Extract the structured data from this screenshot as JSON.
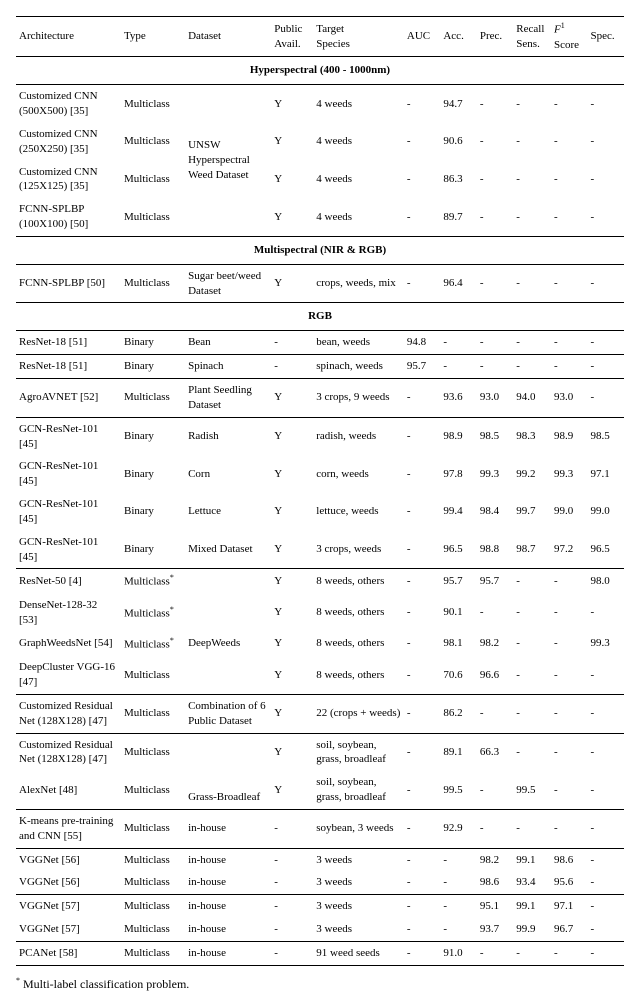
{
  "headers": {
    "arch": "Architecture",
    "type": "Type",
    "dataset": "Dataset",
    "avail1": "Public",
    "avail2": "Avail.",
    "target1": "Target",
    "target2": "Species",
    "auc": "AUC",
    "acc": "Acc.",
    "prec": "Prec.",
    "recall1": "Recall",
    "recall2": "Sens.",
    "f1a": "F",
    "f1sub": "1",
    "f1b": "Score",
    "spec": "Spec."
  },
  "sections": {
    "hyper": "Hyperspectral (400 - 1000nm)",
    "multi": "Multispectral (NIR & RGB)",
    "rgb": "RGB"
  },
  "rows": {
    "h1": {
      "arch": "Customized CNN (500X500) [35]",
      "type": "Multiclass",
      "ds": "",
      "avail": "Y",
      "target": "4 weeds",
      "auc": "-",
      "acc": "94.7",
      "prec": "-",
      "recall": "-",
      "f1": "-",
      "spec": "-"
    },
    "h2": {
      "arch": "Customized CNN (250X250) [35]",
      "type": "Multiclass",
      "ds": "UNSW",
      "avail": "Y",
      "target": "4 weeds",
      "auc": "-",
      "acc": "90.6",
      "prec": "-",
      "recall": "-",
      "f1": "-",
      "spec": "-"
    },
    "h3": {
      "arch": "Customized CNN (125X125) [35]",
      "type": "Multiclass",
      "ds": "Hyperspectral Weed Dataset",
      "avail": "Y",
      "target": "4 weeds",
      "auc": "-",
      "acc": "86.3",
      "prec": "-",
      "recall": "-",
      "f1": "-",
      "spec": "-"
    },
    "h4": {
      "arch": "FCNN-SPLBP (100X100) [50]",
      "type": "Multiclass",
      "ds": "",
      "avail": "Y",
      "target": "4 weeds",
      "auc": "-",
      "acc": "89.7",
      "prec": "-",
      "recall": "-",
      "f1": "-",
      "spec": "-"
    },
    "m1": {
      "arch": "FCNN-SPLBP [50]",
      "type": "Multiclass",
      "ds": "Sugar beet/weed Dataset",
      "avail": "Y",
      "target": "crops, weeds, mix",
      "auc": "-",
      "acc": "96.4",
      "prec": "-",
      "recall": "-",
      "f1": "-",
      "spec": "-"
    },
    "r1": {
      "arch": "ResNet-18 [51]",
      "type": "Binary",
      "ds": "Bean",
      "avail": "-",
      "target": "bean, weeds",
      "auc": "94.8",
      "acc": "-",
      "prec": "-",
      "recall": "-",
      "f1": "-",
      "spec": "-"
    },
    "r2": {
      "arch": "ResNet-18 [51]",
      "type": "Binary",
      "ds": "Spinach",
      "avail": "-",
      "target": "spinach, weeds",
      "auc": "95.7",
      "acc": "-",
      "prec": "-",
      "recall": "-",
      "f1": "-",
      "spec": "-"
    },
    "r3": {
      "arch": "AgroAVNET [52]",
      "type": "Multiclass",
      "ds": "Plant Seedling Dataset",
      "avail": "Y",
      "target": "3 crops, 9 weeds",
      "auc": "-",
      "acc": "93.6",
      "prec": "93.0",
      "recall": "94.0",
      "f1": "93.0",
      "spec": "-"
    },
    "r4": {
      "arch": "GCN-ResNet-101 [45]",
      "type": "Binary",
      "ds": "Radish",
      "avail": "Y",
      "target": "radish, weeds",
      "auc": "-",
      "acc": "98.9",
      "prec": "98.5",
      "recall": "98.3",
      "f1": "98.9",
      "spec": "98.5"
    },
    "r5": {
      "arch": "GCN-ResNet-101 [45]",
      "type": "Binary",
      "ds": "Corn",
      "avail": "Y",
      "target": "corn, weeds",
      "auc": "-",
      "acc": "97.8",
      "prec": "99.3",
      "recall": "99.2",
      "f1": "99.3",
      "spec": "97.1"
    },
    "r6": {
      "arch": "GCN-ResNet-101 [45]",
      "type": "Binary",
      "ds": "Lettuce",
      "avail": "Y",
      "target": "lettuce, weeds",
      "auc": "-",
      "acc": "99.4",
      "prec": "98.4",
      "recall": "99.7",
      "f1": "99.0",
      "spec": "99.0"
    },
    "r7": {
      "arch": "GCN-ResNet-101 [45]",
      "type": "Binary",
      "ds": "Mixed Dataset",
      "avail": "Y",
      "target": "3 crops, weeds",
      "auc": "-",
      "acc": "96.5",
      "prec": "98.8",
      "recall": "98.7",
      "f1": "97.2",
      "spec": "96.5"
    },
    "r8": {
      "arch": "ResNet-50 [4]",
      "type": "Multiclass",
      "ds": "",
      "avail": "Y",
      "target": "8 weeds, others",
      "auc": "-",
      "acc": "95.7",
      "prec": "95.7",
      "recall": "-",
      "f1": "-",
      "spec": "98.0"
    },
    "r9": {
      "arch": "DenseNet-128-32 [53]",
      "type": "Multiclass",
      "ds": "",
      "avail": "Y",
      "target": "8 weeds, others",
      "auc": "-",
      "acc": "90.1",
      "prec": "-",
      "recall": "-",
      "f1": "-",
      "spec": "-"
    },
    "r10": {
      "arch": "GraphWeedsNet [54]",
      "type": "Multiclass",
      "ds": "DeepWeeds",
      "avail": "Y",
      "target": "8 weeds, others",
      "auc": "-",
      "acc": "98.1",
      "prec": "98.2",
      "recall": "-",
      "f1": "-",
      "spec": "99.3"
    },
    "r11": {
      "arch": "DeepCluster VGG-16 [47]",
      "type": "Multiclass",
      "ds": "",
      "avail": "Y",
      "target": "8 weeds, others",
      "auc": "-",
      "acc": "70.6",
      "prec": "96.6",
      "recall": "-",
      "f1": "-",
      "spec": "-"
    },
    "r12": {
      "arch": "Customized Residual Net (128X128) [47]",
      "type": "Multiclass",
      "ds": "Combination of 6 Public Dataset",
      "avail": "Y",
      "target": "22 (crops + weeds)",
      "auc": "-",
      "acc": "86.2",
      "prec": "-",
      "recall": "-",
      "f1": "-",
      "spec": "-"
    },
    "r13": {
      "arch": "Customized Residual Net (128X128) [47]",
      "type": "Multiclass",
      "ds": "",
      "avail": "Y",
      "target": "soil, soybean, grass, broadleaf",
      "auc": "-",
      "acc": "89.1",
      "prec": "66.3",
      "recall": "-",
      "f1": "-",
      "spec": "-"
    },
    "r14": {
      "arch": "AlexNet [48]",
      "type": "Multiclass",
      "ds": "Grass-Broadleaf",
      "avail": "Y",
      "target": "soil, soybean, grass, broadleaf",
      "auc": "-",
      "acc": "99.5",
      "prec": "-",
      "recall": "99.5",
      "f1": "-",
      "spec": "-"
    },
    "r15": {
      "arch": "K-means pre-training and CNN [55]",
      "type": "Multiclass",
      "ds": "in-house",
      "avail": "-",
      "target": "soybean, 3 weeds",
      "auc": "-",
      "acc": "92.9",
      "prec": "-",
      "recall": "-",
      "f1": "-",
      "spec": "-"
    },
    "r16": {
      "arch": "VGGNet [56]",
      "type": "Multiclass",
      "ds": "in-house",
      "avail": "-",
      "target": "3 weeds",
      "auc": "-",
      "acc": "-",
      "prec": "98.2",
      "recall": "99.1",
      "f1": "98.6",
      "spec": "-"
    },
    "r17": {
      "arch": "VGGNet [56]",
      "type": "Multiclass",
      "ds": "in-house",
      "avail": "-",
      "target": "3 weeds",
      "auc": "-",
      "acc": "-",
      "prec": "98.6",
      "recall": "93.4",
      "f1": "95.6",
      "spec": "-"
    },
    "r18": {
      "arch": "VGGNet [57]",
      "type": "Multiclass",
      "ds": "in-house",
      "avail": "-",
      "target": "3 weeds",
      "auc": "-",
      "acc": "-",
      "prec": "95.1",
      "recall": "99.1",
      "f1": "97.1",
      "spec": "-"
    },
    "r19": {
      "arch": "VGGNet [57]",
      "type": "Multiclass",
      "ds": "in-house",
      "avail": "-",
      "target": "3 weeds",
      "auc": "-",
      "acc": "-",
      "prec": "93.7",
      "recall": "99.9",
      "f1": "96.7",
      "spec": "-"
    },
    "r20": {
      "arch": "PCANet [58]",
      "type": "Multiclass",
      "ds": "in-house",
      "avail": "-",
      "target": "91 weed seeds",
      "auc": "-",
      "acc": "91.0",
      "prec": "-",
      "recall": "-",
      "f1": "-",
      "spec": "-"
    }
  },
  "footnote": {
    "star": "*",
    "text": " Multi-label classification problem."
  }
}
